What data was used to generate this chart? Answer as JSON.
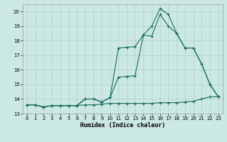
{
  "xlabel": "Humidex (Indice chaleur)",
  "bg_color": "#cce8e4",
  "grid_color": "#aad0ca",
  "line_color": "#1a6b5e",
  "xlim": [
    -0.5,
    23.5
  ],
  "ylim": [
    13.0,
    20.5
  ],
  "yticks": [
    13,
    14,
    15,
    16,
    17,
    18,
    19,
    20
  ],
  "xticks": [
    0,
    1,
    2,
    3,
    4,
    5,
    6,
    7,
    8,
    9,
    10,
    11,
    12,
    13,
    14,
    15,
    16,
    17,
    18,
    19,
    20,
    21,
    22,
    23
  ],
  "series1_x": [
    0,
    1,
    2,
    3,
    4,
    5,
    6,
    7,
    8,
    9,
    10,
    11,
    12,
    13,
    14,
    15,
    16,
    17,
    18,
    19,
    20,
    21,
    22,
    23
  ],
  "series1_y": [
    13.6,
    13.6,
    13.45,
    13.55,
    13.55,
    13.55,
    13.55,
    13.6,
    13.6,
    13.65,
    13.7,
    13.7,
    13.7,
    13.7,
    13.7,
    13.7,
    13.75,
    13.75,
    13.75,
    13.8,
    13.85,
    14.0,
    14.15,
    14.15
  ],
  "series2_x": [
    0,
    1,
    2,
    3,
    4,
    5,
    6,
    7,
    8,
    9,
    10,
    11,
    12,
    13,
    14,
    15,
    16,
    17,
    18,
    19,
    20,
    21,
    22,
    23
  ],
  "series2_y": [
    13.6,
    13.6,
    13.45,
    13.55,
    13.55,
    13.55,
    13.55,
    14.0,
    14.0,
    13.8,
    14.1,
    15.5,
    15.55,
    15.6,
    18.4,
    18.3,
    19.8,
    19.0,
    18.5,
    17.5,
    17.5,
    16.4,
    15.0,
    14.15
  ],
  "series3_x": [
    0,
    1,
    2,
    3,
    4,
    5,
    6,
    7,
    8,
    9,
    10,
    11,
    12,
    13,
    14,
    15,
    16,
    17,
    18,
    19,
    20,
    21,
    22,
    23
  ],
  "series3_y": [
    13.6,
    13.6,
    13.45,
    13.55,
    13.55,
    13.55,
    13.55,
    14.0,
    14.0,
    13.8,
    14.1,
    17.5,
    17.55,
    17.6,
    18.4,
    19.0,
    20.2,
    19.8,
    18.5,
    17.5,
    17.5,
    16.4,
    15.0,
    14.15
  ]
}
